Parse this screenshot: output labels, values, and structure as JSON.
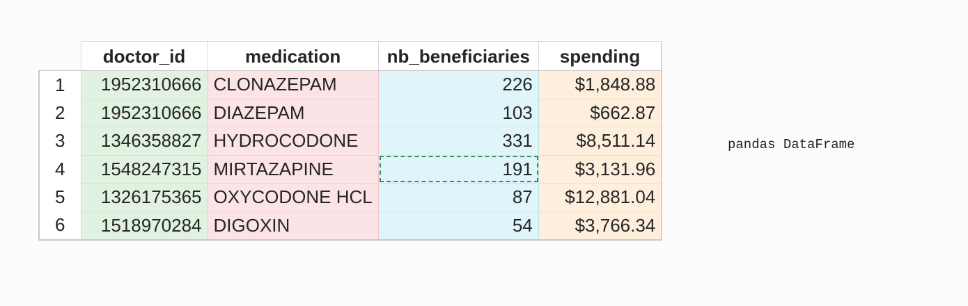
{
  "table": {
    "columns": [
      "doctor_id",
      "medication",
      "nb_beneficiaries",
      "spending"
    ],
    "rows": [
      {
        "index": "1",
        "doctor_id": "1952310666",
        "medication": "CLONAZEPAM",
        "nb_beneficiaries": "226",
        "spending": "$1,848.88"
      },
      {
        "index": "2",
        "doctor_id": "1952310666",
        "medication": "DIAZEPAM",
        "nb_beneficiaries": "103",
        "spending": "$662.87"
      },
      {
        "index": "3",
        "doctor_id": "1346358827",
        "medication": "HYDROCODONE",
        "nb_beneficiaries": "331",
        "spending": "$8,511.14"
      },
      {
        "index": "4",
        "doctor_id": "1548247315",
        "medication": "MIRTAZAPINE",
        "nb_beneficiaries": "191",
        "spending": "$3,131.96"
      },
      {
        "index": "5",
        "doctor_id": "1326175365",
        "medication": "OXYCODONE HCL",
        "nb_beneficiaries": "87",
        "spending": "$12,881.04"
      },
      {
        "index": "6",
        "doctor_id": "1518970284",
        "medication": "DIGOXIN",
        "nb_beneficiaries": "54",
        "spending": "$3,766.34"
      }
    ],
    "selected_cell": {
      "row": 4,
      "column": "nb_beneficiaries"
    },
    "colors": {
      "doctor_id": "#e2f2e0",
      "medication": "#fce3e5",
      "nb_beneficiaries": "#e0f5fa",
      "spending": "#fdefdc",
      "selection_border": "#3f8a5a"
    }
  },
  "caption": "pandas DataFrame"
}
